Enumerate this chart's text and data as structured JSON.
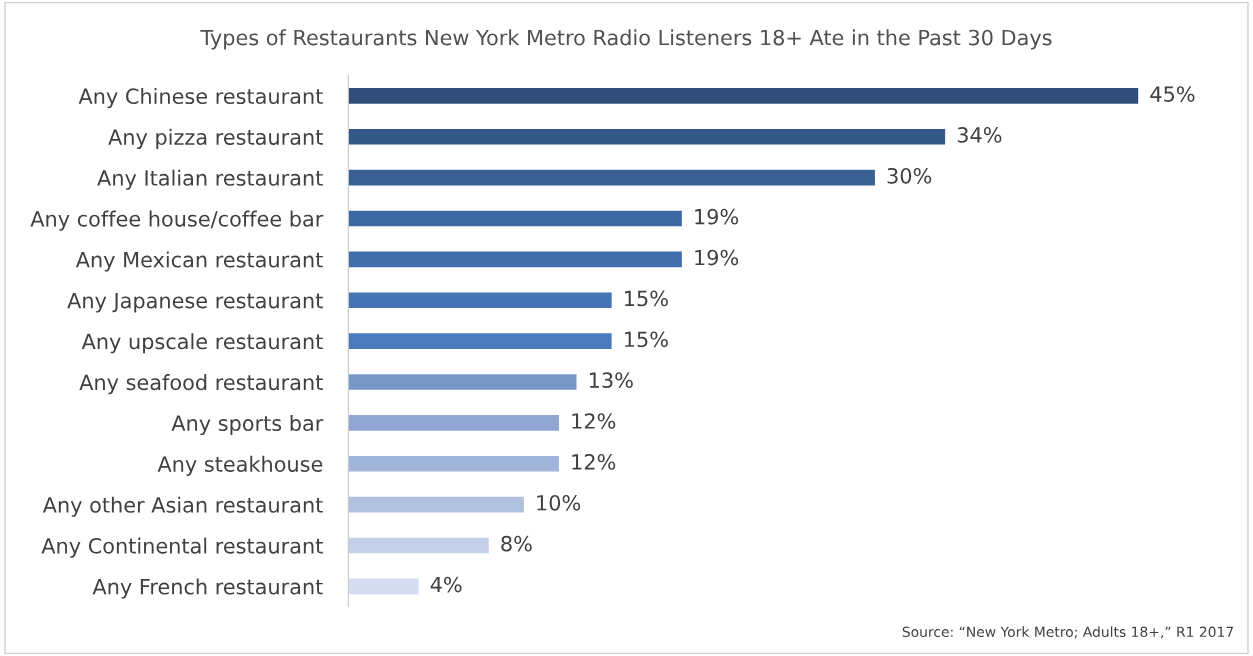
{
  "chart_data": {
    "type": "bar",
    "orientation": "horizontal",
    "title": "Types of Restaurants New York Metro Radio Listeners 18+ Ate in the Past 30 Days",
    "categories": [
      "Any Chinese restaurant",
      "Any pizza restaurant",
      "Any Italian restaurant",
      "Any coffee house/coffee bar",
      "Any Mexican restaurant",
      "Any Japanese restaurant",
      "Any upscale restaurant",
      "Any seafood restaurant",
      "Any sports bar",
      "Any steakhouse",
      "Any other Asian restaurant",
      "Any Continental restaurant",
      "Any French restaurant"
    ],
    "values": [
      45,
      34,
      30,
      19,
      19,
      15,
      15,
      13,
      12,
      12,
      10,
      8,
      4
    ],
    "value_labels": [
      "45%",
      "34%",
      "30%",
      "19%",
      "19%",
      "15%",
      "15%",
      "13%",
      "12%",
      "12%",
      "10%",
      "8%",
      "4%"
    ],
    "colors": [
      "#2f4d78",
      "#335787",
      "#386093",
      "#3d69a2",
      "#406eaa",
      "#4574b5",
      "#4a7bbf",
      "#7896c8",
      "#8fa7d2",
      "#a1b5da",
      "#b1c1e0",
      "#c3cee7",
      "#d4dcef"
    ],
    "annotations": [
      "Source: “New York Metro; Adults 18+,” R1 2017"
    ]
  }
}
